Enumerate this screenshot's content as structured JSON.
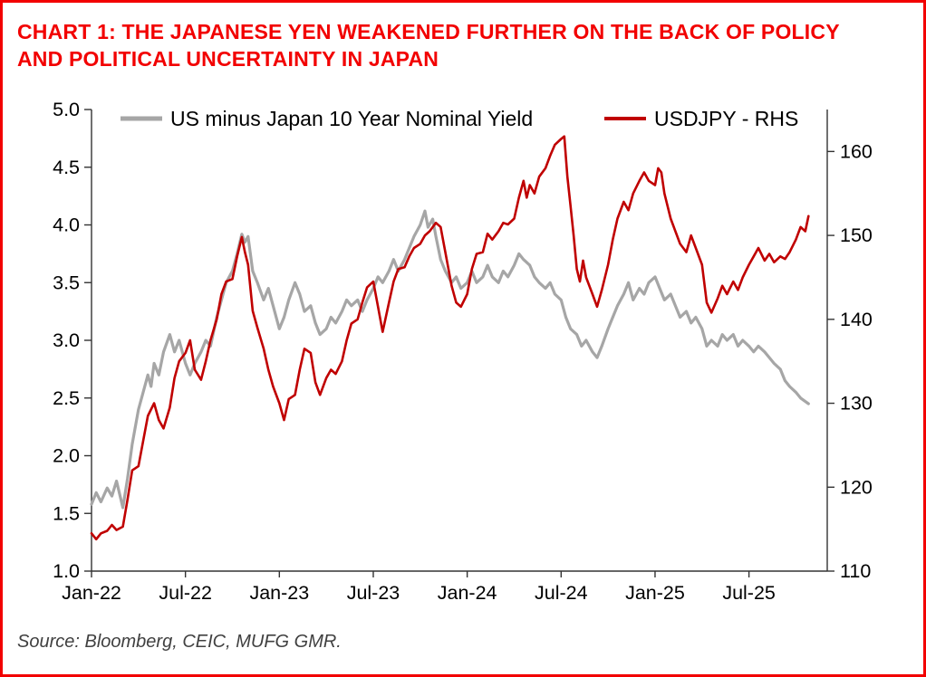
{
  "chart_data": {
    "type": "line",
    "title": "CHART 1: THE JAPANESE YEN WEAKENED FURTHER ON THE BACK OF POLICY AND POLITICAL UNCERTAINTY IN JAPAN",
    "source": "Source: Bloomberg, CEIC, MUFG GMR.",
    "grid": false,
    "legend_position": "top-inside",
    "title_color": "#f20000",
    "x_unit": "months since Jan-2022",
    "x_range": [
      0,
      47
    ],
    "x_ticks": [
      {
        "pos": 0,
        "label": "Jan-22"
      },
      {
        "pos": 6,
        "label": "Jul-22"
      },
      {
        "pos": 12,
        "label": "Jan-23"
      },
      {
        "pos": 18,
        "label": "Jul-23"
      },
      {
        "pos": 24,
        "label": "Jan-24"
      },
      {
        "pos": 30,
        "label": "Jul-24"
      },
      {
        "pos": 36,
        "label": "Jan-25"
      },
      {
        "pos": 42,
        "label": "Jul-25"
      }
    ],
    "left_axis": {
      "min": 1.0,
      "max": 5.0,
      "step": 0.5
    },
    "right_axis": {
      "min": 110,
      "plot_max": 165,
      "ticks": [
        110,
        120,
        130,
        140,
        150,
        160
      ]
    },
    "series": [
      {
        "name": "US minus Japan 10 Year Nominal Yield",
        "axis": "left",
        "color": "#a6a6a6",
        "width": 3.2,
        "points": [
          [
            0,
            1.58
          ],
          [
            0.3,
            1.68
          ],
          [
            0.6,
            1.6
          ],
          [
            1,
            1.72
          ],
          [
            1.3,
            1.65
          ],
          [
            1.6,
            1.78
          ],
          [
            2,
            1.55
          ],
          [
            2.3,
            1.8
          ],
          [
            2.6,
            2.1
          ],
          [
            3,
            2.4
          ],
          [
            3.3,
            2.55
          ],
          [
            3.6,
            2.7
          ],
          [
            3.8,
            2.6
          ],
          [
            4,
            2.8
          ],
          [
            4.3,
            2.7
          ],
          [
            4.6,
            2.9
          ],
          [
            5,
            3.05
          ],
          [
            5.3,
            2.9
          ],
          [
            5.6,
            3.0
          ],
          [
            6,
            2.8
          ],
          [
            6.3,
            2.7
          ],
          [
            6.6,
            2.8
          ],
          [
            7,
            2.9
          ],
          [
            7.3,
            3.0
          ],
          [
            7.6,
            2.95
          ],
          [
            8,
            3.2
          ],
          [
            8.3,
            3.35
          ],
          [
            8.6,
            3.5
          ],
          [
            9,
            3.6
          ],
          [
            9.3,
            3.75
          ],
          [
            9.6,
            3.92
          ],
          [
            9.8,
            3.85
          ],
          [
            10,
            3.9
          ],
          [
            10.3,
            3.6
          ],
          [
            10.6,
            3.5
          ],
          [
            11,
            3.35
          ],
          [
            11.3,
            3.45
          ],
          [
            11.6,
            3.3
          ],
          [
            12,
            3.1
          ],
          [
            12.3,
            3.2
          ],
          [
            12.6,
            3.35
          ],
          [
            13,
            3.5
          ],
          [
            13.3,
            3.4
          ],
          [
            13.6,
            3.25
          ],
          [
            14,
            3.3
          ],
          [
            14.3,
            3.15
          ],
          [
            14.6,
            3.05
          ],
          [
            15,
            3.1
          ],
          [
            15.3,
            3.2
          ],
          [
            15.6,
            3.15
          ],
          [
            16,
            3.25
          ],
          [
            16.3,
            3.35
          ],
          [
            16.6,
            3.3
          ],
          [
            17,
            3.35
          ],
          [
            17.3,
            3.25
          ],
          [
            17.6,
            3.35
          ],
          [
            18,
            3.45
          ],
          [
            18.3,
            3.55
          ],
          [
            18.6,
            3.5
          ],
          [
            19,
            3.6
          ],
          [
            19.3,
            3.7
          ],
          [
            19.6,
            3.6
          ],
          [
            20,
            3.7
          ],
          [
            20.3,
            3.8
          ],
          [
            20.6,
            3.9
          ],
          [
            21,
            4.0
          ],
          [
            21.3,
            4.12
          ],
          [
            21.5,
            3.98
          ],
          [
            21.8,
            4.05
          ],
          [
            22,
            3.9
          ],
          [
            22.3,
            3.7
          ],
          [
            22.6,
            3.6
          ],
          [
            23,
            3.5
          ],
          [
            23.3,
            3.55
          ],
          [
            23.6,
            3.45
          ],
          [
            24,
            3.5
          ],
          [
            24.3,
            3.6
          ],
          [
            24.6,
            3.5
          ],
          [
            25,
            3.55
          ],
          [
            25.3,
            3.65
          ],
          [
            25.6,
            3.55
          ],
          [
            26,
            3.5
          ],
          [
            26.3,
            3.6
          ],
          [
            26.6,
            3.55
          ],
          [
            27,
            3.65
          ],
          [
            27.3,
            3.75
          ],
          [
            27.6,
            3.7
          ],
          [
            28,
            3.65
          ],
          [
            28.3,
            3.55
          ],
          [
            28.6,
            3.5
          ],
          [
            29,
            3.45
          ],
          [
            29.3,
            3.5
          ],
          [
            29.6,
            3.4
          ],
          [
            30,
            3.35
          ],
          [
            30.3,
            3.2
          ],
          [
            30.6,
            3.1
          ],
          [
            31,
            3.05
          ],
          [
            31.3,
            2.95
          ],
          [
            31.6,
            3.0
          ],
          [
            32,
            2.9
          ],
          [
            32.3,
            2.85
          ],
          [
            32.6,
            2.95
          ],
          [
            33,
            3.1
          ],
          [
            33.3,
            3.2
          ],
          [
            33.6,
            3.3
          ],
          [
            34,
            3.4
          ],
          [
            34.3,
            3.5
          ],
          [
            34.6,
            3.35
          ],
          [
            35,
            3.45
          ],
          [
            35.3,
            3.4
          ],
          [
            35.6,
            3.5
          ],
          [
            36,
            3.55
          ],
          [
            36.3,
            3.45
          ],
          [
            36.6,
            3.35
          ],
          [
            37,
            3.4
          ],
          [
            37.3,
            3.3
          ],
          [
            37.6,
            3.2
          ],
          [
            38,
            3.25
          ],
          [
            38.3,
            3.15
          ],
          [
            38.6,
            3.2
          ],
          [
            39,
            3.1
          ],
          [
            39.3,
            2.95
          ],
          [
            39.6,
            3.0
          ],
          [
            40,
            2.95
          ],
          [
            40.3,
            3.05
          ],
          [
            40.6,
            3.0
          ],
          [
            41,
            3.05
          ],
          [
            41.3,
            2.95
          ],
          [
            41.6,
            3.0
          ],
          [
            42,
            2.95
          ],
          [
            42.3,
            2.9
          ],
          [
            42.6,
            2.95
          ],
          [
            43,
            2.9
          ],
          [
            43.3,
            2.85
          ],
          [
            43.6,
            2.8
          ],
          [
            44,
            2.75
          ],
          [
            44.3,
            2.65
          ],
          [
            44.6,
            2.6
          ],
          [
            45,
            2.55
          ],
          [
            45.3,
            2.5
          ],
          [
            45.6,
            2.47
          ],
          [
            45.8,
            2.45
          ]
        ]
      },
      {
        "name": "USDJPY - RHS",
        "axis": "right",
        "color": "#c00000",
        "width": 2.6,
        "points": [
          [
            0,
            114.5
          ],
          [
            0.3,
            113.8
          ],
          [
            0.6,
            114.5
          ],
          [
            1,
            114.8
          ],
          [
            1.3,
            115.5
          ],
          [
            1.6,
            114.9
          ],
          [
            2,
            115.3
          ],
          [
            2.3,
            118.5
          ],
          [
            2.6,
            122
          ],
          [
            3,
            122.5
          ],
          [
            3.3,
            125.5
          ],
          [
            3.6,
            128.5
          ],
          [
            4,
            130
          ],
          [
            4.3,
            128
          ],
          [
            4.6,
            127
          ],
          [
            5,
            129.5
          ],
          [
            5.3,
            133
          ],
          [
            5.6,
            135
          ],
          [
            6,
            136
          ],
          [
            6.3,
            137.5
          ],
          [
            6.6,
            134
          ],
          [
            7,
            132.8
          ],
          [
            7.3,
            135
          ],
          [
            7.6,
            137.5
          ],
          [
            8,
            140
          ],
          [
            8.3,
            143
          ],
          [
            8.6,
            144.5
          ],
          [
            9,
            144.8
          ],
          [
            9.3,
            147.5
          ],
          [
            9.6,
            149.8
          ],
          [
            9.8,
            148
          ],
          [
            10,
            146.5
          ],
          [
            10.3,
            141
          ],
          [
            10.6,
            139
          ],
          [
            11,
            136.5
          ],
          [
            11.3,
            134
          ],
          [
            11.6,
            132
          ],
          [
            12,
            130
          ],
          [
            12.3,
            128
          ],
          [
            12.6,
            130.5
          ],
          [
            13,
            131
          ],
          [
            13.3,
            134
          ],
          [
            13.6,
            136.5
          ],
          [
            14,
            136
          ],
          [
            14.3,
            132.5
          ],
          [
            14.6,
            131
          ],
          [
            15,
            133
          ],
          [
            15.3,
            134
          ],
          [
            15.6,
            133.5
          ],
          [
            16,
            135
          ],
          [
            16.3,
            137.5
          ],
          [
            16.6,
            139.5
          ],
          [
            17,
            140
          ],
          [
            17.3,
            142
          ],
          [
            17.6,
            143.8
          ],
          [
            18,
            144.5
          ],
          [
            18.3,
            141.5
          ],
          [
            18.6,
            138.5
          ],
          [
            19,
            142
          ],
          [
            19.3,
            144.5
          ],
          [
            19.6,
            146
          ],
          [
            20,
            146.2
          ],
          [
            20.3,
            147.5
          ],
          [
            20.6,
            148.5
          ],
          [
            21,
            149
          ],
          [
            21.3,
            150
          ],
          [
            21.6,
            150.5
          ],
          [
            22,
            151.5
          ],
          [
            22.3,
            151
          ],
          [
            22.6,
            148
          ],
          [
            23,
            144
          ],
          [
            23.3,
            142
          ],
          [
            23.6,
            141.5
          ],
          [
            24,
            143
          ],
          [
            24.3,
            146
          ],
          [
            24.6,
            147.8
          ],
          [
            25,
            148
          ],
          [
            25.3,
            150.2
          ],
          [
            25.6,
            149.5
          ],
          [
            26,
            150.5
          ],
          [
            26.3,
            151.5
          ],
          [
            26.6,
            151.3
          ],
          [
            27,
            152
          ],
          [
            27.3,
            154.5
          ],
          [
            27.6,
            156.5
          ],
          [
            27.8,
            154.5
          ],
          [
            28,
            156
          ],
          [
            28.3,
            155
          ],
          [
            28.6,
            157
          ],
          [
            29,
            158
          ],
          [
            29.3,
            159.5
          ],
          [
            29.6,
            160.8
          ],
          [
            30,
            161.5
          ],
          [
            30.2,
            161.8
          ],
          [
            30.4,
            157
          ],
          [
            30.6,
            153.5
          ],
          [
            30.8,
            150
          ],
          [
            31,
            146
          ],
          [
            31.2,
            144.5
          ],
          [
            31.4,
            147
          ],
          [
            31.6,
            145
          ],
          [
            32,
            143
          ],
          [
            32.3,
            141.5
          ],
          [
            32.6,
            143.5
          ],
          [
            33,
            146.5
          ],
          [
            33.3,
            149.5
          ],
          [
            33.6,
            152
          ],
          [
            34,
            154
          ],
          [
            34.3,
            153
          ],
          [
            34.6,
            155
          ],
          [
            35,
            156.5
          ],
          [
            35.3,
            157.5
          ],
          [
            35.6,
            156.5
          ],
          [
            36,
            156
          ],
          [
            36.2,
            158
          ],
          [
            36.4,
            157.5
          ],
          [
            36.6,
            155
          ],
          [
            37,
            152
          ],
          [
            37.3,
            150.5
          ],
          [
            37.6,
            149
          ],
          [
            38,
            148
          ],
          [
            38.3,
            150
          ],
          [
            38.6,
            148.5
          ],
          [
            39,
            146.5
          ],
          [
            39.3,
            142
          ],
          [
            39.6,
            140.8
          ],
          [
            40,
            142.5
          ],
          [
            40.3,
            144
          ],
          [
            40.6,
            143
          ],
          [
            41,
            144.5
          ],
          [
            41.3,
            143.5
          ],
          [
            41.6,
            145
          ],
          [
            42,
            146.5
          ],
          [
            42.3,
            147.5
          ],
          [
            42.6,
            148.5
          ],
          [
            43,
            147
          ],
          [
            43.3,
            147.8
          ],
          [
            43.6,
            146.8
          ],
          [
            44,
            147.5
          ],
          [
            44.3,
            147.2
          ],
          [
            44.6,
            148
          ],
          [
            45,
            149.5
          ],
          [
            45.3,
            151
          ],
          [
            45.6,
            150.5
          ],
          [
            45.8,
            152.3
          ]
        ]
      }
    ]
  }
}
